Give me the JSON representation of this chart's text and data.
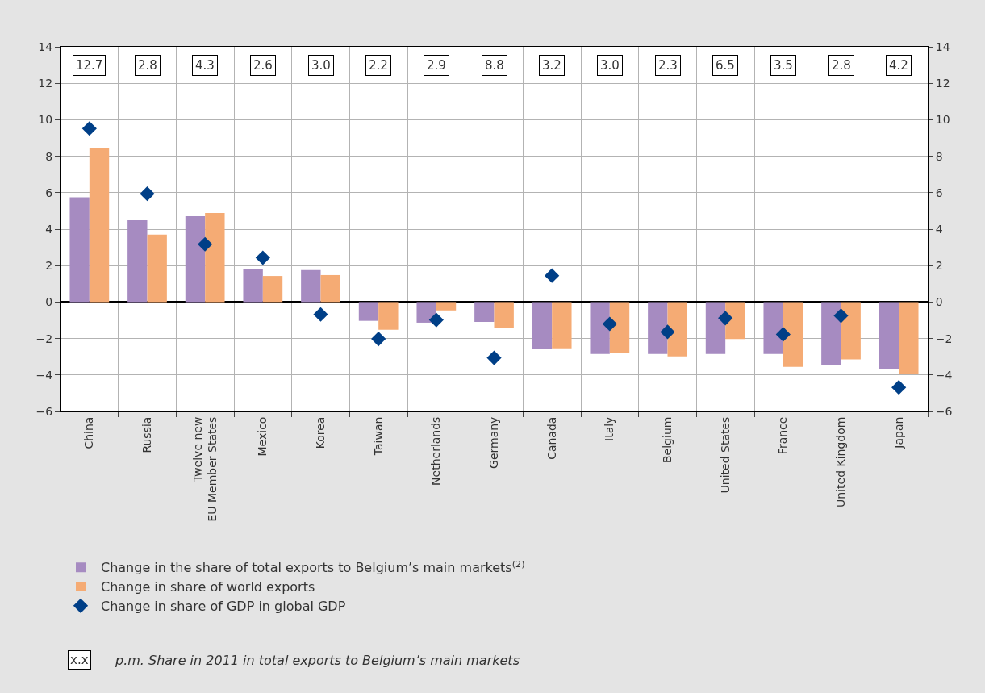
{
  "chart_data": {
    "type": "bar",
    "categories": [
      "China",
      "Russia",
      "Twelve new\nEU Member States",
      "Mexico",
      "Korea",
      "Taiwan",
      "Netherlands",
      "Germany",
      "Canada",
      "Italy",
      "Belgium",
      "United States",
      "France",
      "United Kingdom",
      "Japan"
    ],
    "series": [
      {
        "name": "Change in the share of total exports to Belgium’s main markets$^{(2)}$",
        "color": "#a68bc1",
        "values": [
          5.75,
          4.49,
          4.71,
          1.83,
          1.75,
          -1.03,
          -1.13,
          -1.09,
          -2.59,
          -2.85,
          -2.85,
          -2.85,
          -2.85,
          -3.48,
          -3.66
        ]
      },
      {
        "name": "Change in share of world exports",
        "color": "#f5ab74",
        "values": [
          8.44,
          3.7,
          4.89,
          1.43,
          1.48,
          -1.52,
          -0.46,
          -1.41,
          -2.54,
          -2.8,
          -2.98,
          -2.03,
          -3.56,
          -3.15,
          -3.97
        ]
      },
      {
        "name": "Change in share of GDP in global GDP",
        "type": "scatter",
        "marker": "diamond",
        "color": "#003f87",
        "values": [
          9.52,
          5.94,
          3.17,
          2.43,
          -0.68,
          -2.02,
          -0.98,
          -3.06,
          1.45,
          -1.2,
          -1.64,
          -0.88,
          -1.77,
          -0.75,
          -4.68
        ]
      }
    ],
    "ylim": [
      -6,
      14
    ],
    "yticks": [
      {
        "value": -6,
        "label": "−6"
      },
      {
        "value": -4,
        "label": "−4"
      },
      {
        "value": -2,
        "label": "−2"
      },
      0,
      2,
      4,
      6,
      8,
      10,
      12,
      14
    ],
    "y2lim": [
      -6,
      14
    ],
    "y2ticks": [
      {
        "value": -6,
        "label": "−6"
      },
      {
        "value": -4,
        "label": "−4"
      },
      {
        "value": -2,
        "label": "−2"
      },
      0,
      2,
      4,
      6,
      8,
      10,
      12,
      14
    ],
    "annotations": [
      {
        "text": "12.7",
        "x": "China",
        "y": 13
      },
      {
        "text": "2.8",
        "x": "Russia",
        "y": 13
      },
      {
        "text": "4.3",
        "x": "Twelve new\nEU Member States",
        "y": 13
      },
      {
        "text": "2.6",
        "x": "Mexico",
        "y": 13
      },
      {
        "text": "3.0",
        "x": "Korea",
        "y": 13
      },
      {
        "text": "2.2",
        "x": "Taiwan",
        "y": 13
      },
      {
        "text": "2.9",
        "x": "Netherlands",
        "y": 13
      },
      {
        "text": "8.8",
        "x": "Germany",
        "y": 13
      },
      {
        "text": "3.2",
        "x": "Canada",
        "y": 13
      },
      {
        "text": "3.0",
        "x": "Italy",
        "y": 13
      },
      {
        "text": "2.3",
        "x": "Belgium",
        "y": 13
      },
      {
        "text": "6.5",
        "x": "United States",
        "y": 13
      },
      {
        "text": "3.5",
        "x": "France",
        "y": 13
      },
      {
        "text": "2.8",
        "x": "United Kingdom",
        "y": 13
      },
      {
        "text": "4.2",
        "x": "Japan",
        "y": 13
      },
      "x.x",
      "p.m. Share in 2011 in total exports to Belgium’s main markets"
    ],
    "grid": true,
    "legend": "bottom left"
  }
}
